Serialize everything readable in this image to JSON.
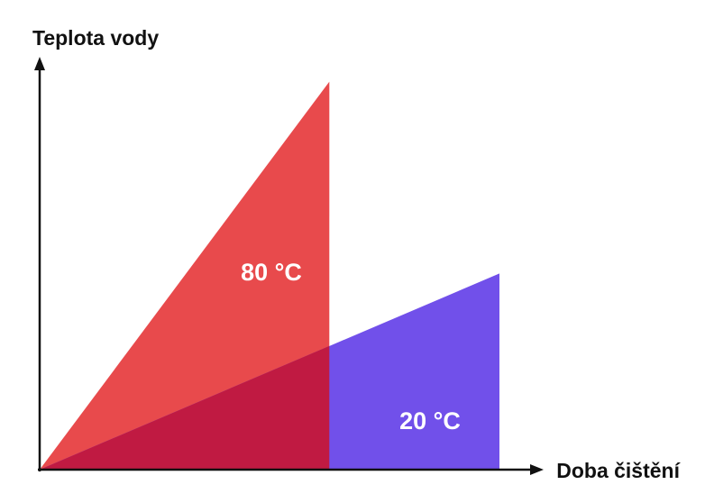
{
  "chart_data": {
    "type": "area",
    "title": "",
    "ylabel": "Teplota vody",
    "xlabel": "Doba čištění",
    "grid": false,
    "legend": "none",
    "series": [
      {
        "name": "80 °C",
        "label": "80 °C",
        "color": "#e84a4c",
        "x_end": 0.63,
        "y_end": 0.91
      },
      {
        "name": "20 °C",
        "label": "20 °C",
        "color": "#7150ea",
        "x_end": 1.0,
        "y_end": 0.46
      }
    ],
    "overlap_color": "#c01a42",
    "axis_color": "#111111"
  }
}
